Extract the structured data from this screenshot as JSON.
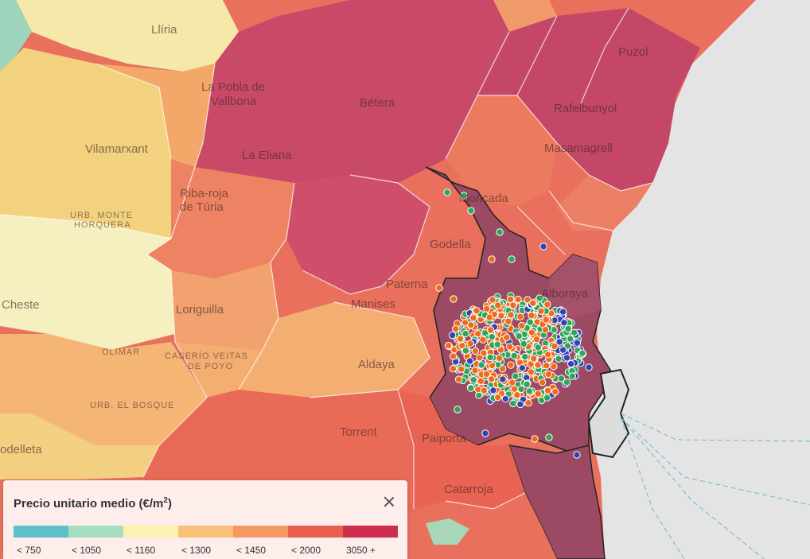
{
  "legend": {
    "title": "Precio unitario medio (€/m",
    "title_sup": "2",
    "title_suffix": ")",
    "close_icon": "close-icon",
    "classes": [
      {
        "label": "< 750",
        "color": "#5bc0c8"
      },
      {
        "label": "< 1050",
        "color": "#a8dec0"
      },
      {
        "label": "< 1160",
        "color": "#fdf3b0"
      },
      {
        "label": "< 1300",
        "color": "#f8c277"
      },
      {
        "label": "< 1450",
        "color": "#f59a62"
      },
      {
        "label": "< 2000",
        "color": "#ea5f4d"
      },
      {
        "label": "3050 +",
        "color": "#cd2e4d"
      }
    ]
  },
  "places": {
    "liria": "Llíria",
    "pobla1": "La Pobla de",
    "pobla2": "Vallbona",
    "betera": "Bétera",
    "puzol": "Puzol",
    "rafelbunyol": "Rafelbunyol",
    "masamagrell": "Masamagrell",
    "vilamarxant": "Vilamarxant",
    "eliana": "La Eliana",
    "ribaroja1": "Riba-roja",
    "ribaroja2": "de Túria",
    "urb_monte1": "URB. MONTE",
    "urb_monte2": "HORQUERA",
    "moncada": "Moncada",
    "godella": "Godella",
    "paterna": "Paterna",
    "alboraya": "Alboraya",
    "cheste": "Cheste",
    "loriguilla": "Loriguilla",
    "manises": "Manises",
    "olimar": "OLIMAR",
    "caserio1": "CASERÍO VEITAS",
    "caserio2": "DE POYO",
    "aldaya": "Aldaya",
    "bosque": "URB. EL BOSQUE",
    "torrent": "Torrent",
    "paiporta": "Paiporta",
    "catarroja": "Catarroja",
    "chiva": "odelleta"
  }
}
